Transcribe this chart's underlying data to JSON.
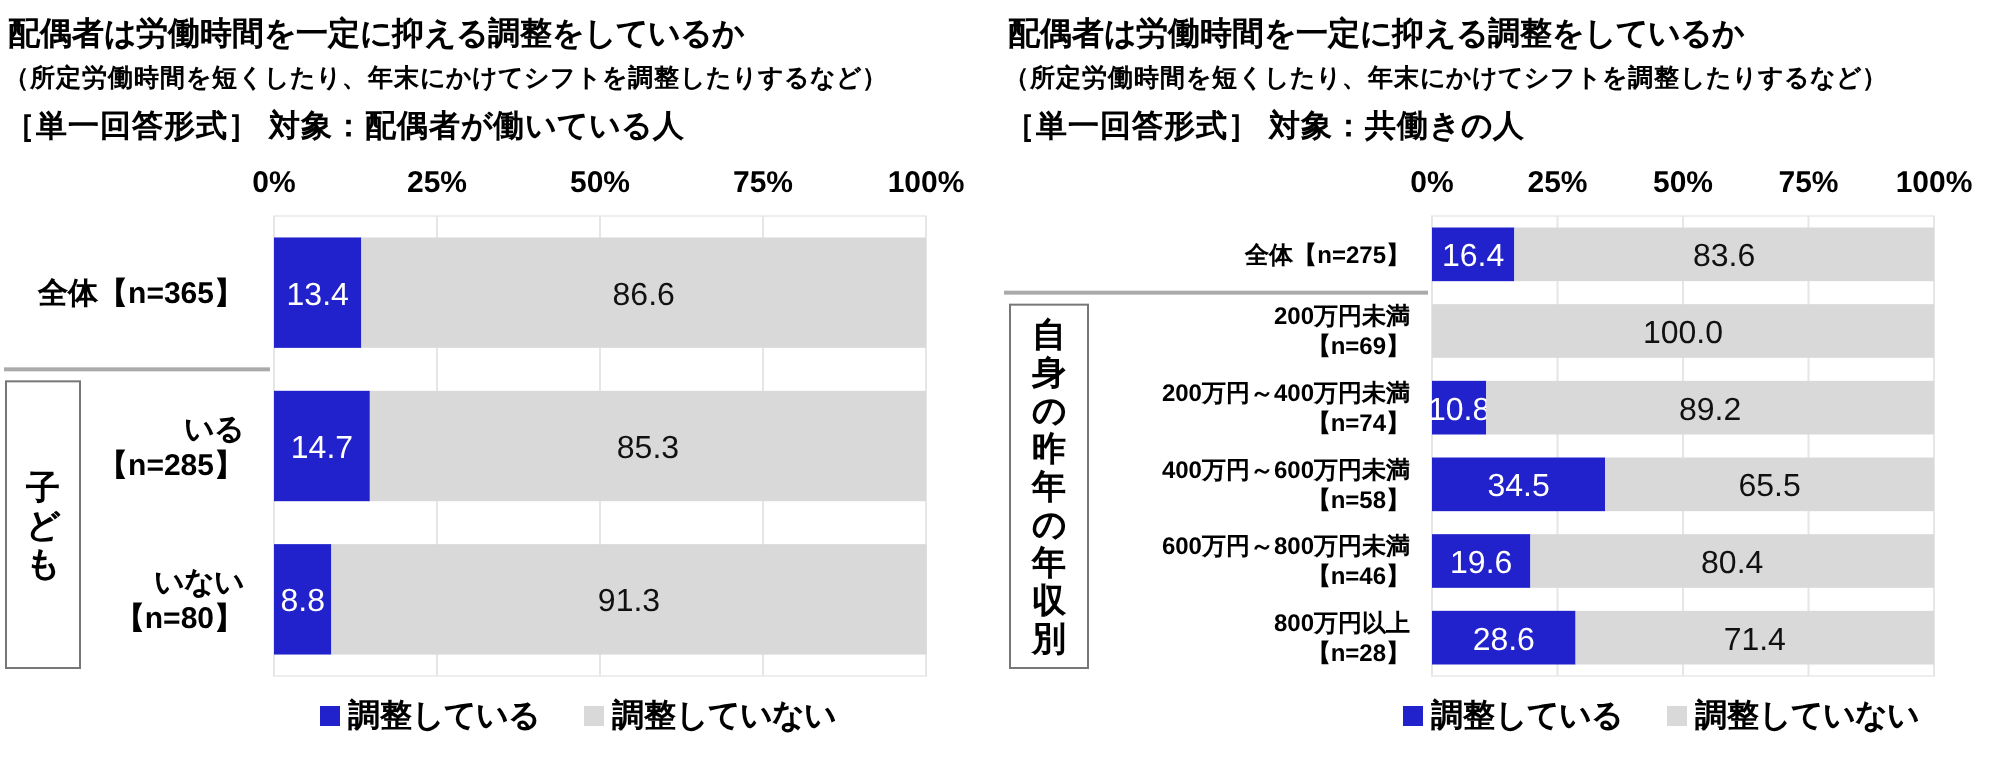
{
  "chart_data": [
    {
      "type": "bar",
      "orientation": "horizontal",
      "stacked": true,
      "title": "配偶者は労働時間を一定に抑える調整をしているか",
      "subtitle": "（所定労働時間を短くしたり、年末にかけてシフトを調整したりするなど）",
      "annotations": [
        "［単一回答形式］ 対象：配偶者が働いている人",
        "子ども"
      ],
      "categories": [
        "全体【n=365】",
        "いる【n=285】",
        "いない【n=80】"
      ],
      "series": [
        {
          "name": "調整している",
          "color": "#2222cc",
          "values": [
            13.4,
            14.7,
            8.8
          ],
          "value_labels": [
            "13.4",
            "14.7",
            "8.8"
          ]
        },
        {
          "name": "調整していない",
          "color": "#d9d9d9",
          "values": [
            86.6,
            85.3,
            91.3
          ],
          "value_labels": [
            "86.6",
            "85.3",
            "91.3"
          ]
        }
      ],
      "xlim": [
        0,
        100
      ],
      "xticks": [
        {
          "value": 0,
          "label": "0%"
        },
        {
          "value": 25,
          "label": "25%"
        },
        {
          "value": 50,
          "label": "50%"
        },
        {
          "value": 75,
          "label": "75%"
        },
        {
          "value": 100,
          "label": "100%"
        }
      ],
      "grid": "x",
      "legend": "bottom"
    },
    {
      "type": "bar",
      "orientation": "horizontal",
      "stacked": true,
      "title": "配偶者は労働時間を一定に抑える調整をしているか",
      "subtitle": "（所定労働時間を短くしたり、年末にかけてシフトを調整したりするなど）",
      "annotations": [
        "［単一回答形式］ 対象：共働きの人",
        "自身の昨年の年収別"
      ],
      "categories": [
        "全体【n=275】",
        "200万円未満【n=69】",
        "200万円～400万円未満【n=74】",
        "400万円～600万円未満【n=58】",
        "600万円～800万円未満【n=46】",
        "800万円以上【n=28】"
      ],
      "series": [
        {
          "name": "調整している",
          "color": "#2222cc",
          "values": [
            16.4,
            0,
            10.8,
            34.5,
            19.6,
            28.6
          ],
          "value_labels": [
            "16.4",
            null,
            "10.8",
            "34.5",
            "19.6",
            "28.6"
          ]
        },
        {
          "name": "調整していない",
          "color": "#d9d9d9",
          "values": [
            83.6,
            100,
            89.2,
            65.5,
            80.4,
            71.4
          ],
          "value_labels": [
            "83.6",
            "100.0",
            "89.2",
            "65.5",
            "80.4",
            "71.4"
          ]
        }
      ],
      "xlim": [
        0,
        100
      ],
      "xticks": [
        {
          "value": 0,
          "label": "0%"
        },
        {
          "value": 25,
          "label": "25%"
        },
        {
          "value": 50,
          "label": "50%"
        },
        {
          "value": 75,
          "label": "75%"
        },
        {
          "value": 100,
          "label": "100%"
        }
      ],
      "grid": "x",
      "legend": "bottom"
    }
  ]
}
